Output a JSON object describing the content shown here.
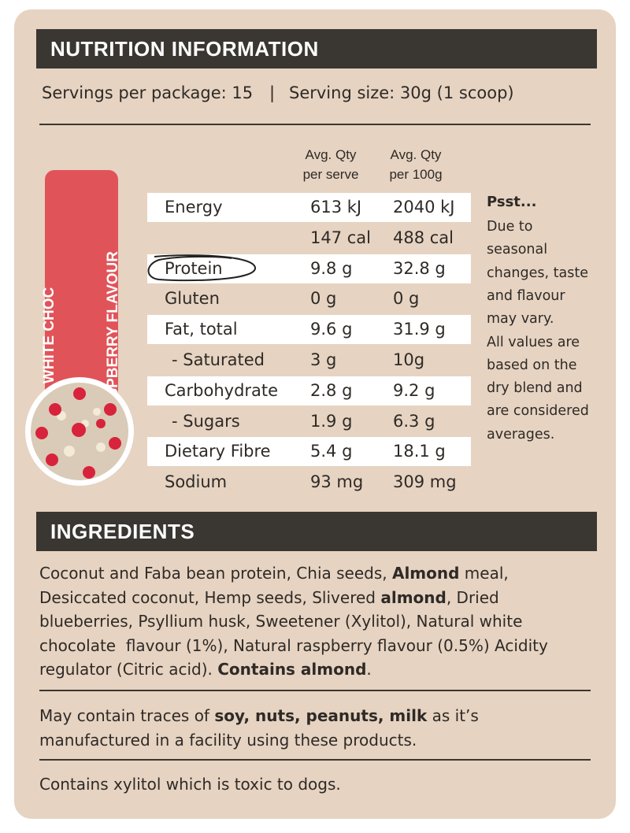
{
  "nutrition": {
    "title": "NUTRITION INFORMATION",
    "servings": "Servings per package: 15",
    "separator": "|",
    "serving_size": "Serving size: 30g (1 scoop)",
    "flavour": [
      "WHITE CHOC",
      "RASPBERRY FLAVOUR"
    ],
    "columns": [
      [
        "Avg. Qty",
        "per serve"
      ],
      [
        "Avg. Qty",
        "per 100g"
      ]
    ],
    "rows": [
      {
        "label": "Energy",
        "serve": "613 kJ",
        "per100g": "2040 kJ",
        "shaded": true
      },
      {
        "label": null,
        "serve": "147 cal",
        "per100g": "488 cal",
        "shaded": false
      },
      {
        "label": "Protein",
        "serve": "9.8 g",
        "per100g": "32.8 g",
        "shaded": true
      },
      {
        "label": "Gluten",
        "serve": "0 g",
        "per100g": "0 g",
        "shaded": false
      },
      {
        "label": "Fat, total",
        "serve": "9.6 g",
        "per100g": "31.9 g",
        "shaded": true
      },
      {
        "label": "- Saturated",
        "serve": "3 g",
        "per100g": "10g",
        "shaded": false,
        "sub": true
      },
      {
        "label": "Carbohydrate",
        "serve": "2.8 g",
        "per100g": "9.2 g",
        "shaded": true
      },
      {
        "label": "- Sugars",
        "serve": "1.9 g",
        "per100g": "6.3 g",
        "shaded": false,
        "sub": true
      },
      {
        "label": "Dietary Fibre",
        "serve": "5.4 g",
        "per100g": "18.1 g",
        "shaded": true
      },
      {
        "label": "Sodium",
        "serve": "93 mg",
        "per100g": "309 mg",
        "shaded": false
      }
    ],
    "note": {
      "title": "Psst...",
      "lines": [
        "Due to",
        "seasonal",
        "changes, taste",
        "and flavour",
        "may vary.",
        "All values are",
        "based on the",
        "dry blend and",
        "are considered",
        "averages."
      ]
    }
  },
  "ingredients": {
    "title": "INGREDIENTS",
    "lines": [
      [
        {
          "text": "Coconut and Faba bean protein, Chia seeds, "
        },
        {
          "text": "Almond",
          "bold": true
        },
        {
          "text": " meal,"
        }
      ],
      [
        {
          "text": "Desiccated coconut, Hemp seeds, Slivered "
        },
        {
          "text": "almond",
          "bold": true
        },
        {
          "text": ", Dried"
        }
      ],
      [
        {
          "text": "blueberries, Psyllium husk, Sweetener (Xylitol), Natural white"
        }
      ],
      [
        {
          "text": "chocolate  flavour (1%), Natural raspberry flavour (0.5%) Acidity"
        }
      ],
      [
        {
          "text": "regulator (Citric acid). "
        },
        {
          "text": "Contains almond",
          "bold": true
        },
        {
          "text": "."
        }
      ]
    ]
  },
  "traces": {
    "lines": [
      [
        {
          "text": "May contain traces of "
        },
        {
          "text": "soy, nuts, peanuts, milk",
          "bold": true
        },
        {
          "text": " as it’s"
        }
      ],
      [
        {
          "text": "manufactured in a facility using these products."
        }
      ]
    ]
  },
  "warning": "Contains xylitol which is toxic to dogs."
}
